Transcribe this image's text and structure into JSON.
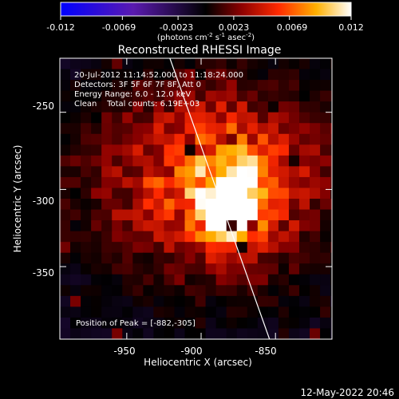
{
  "colorbar": {
    "tick_labels": [
      "-0.012",
      "-0.0069",
      "-0.0023",
      "0.0023",
      "0.0069",
      "0.012"
    ],
    "units_label": "(photons cm",
    "units_sup1": "-2",
    "units_mid": " s",
    "units_sup2": "-1",
    "units_end": " asec",
    "units_sup3": "-2",
    "units_close": ")",
    "range": [
      -0.012,
      0.012
    ],
    "colormap": "red-temperature with blue negatives"
  },
  "plot": {
    "title": "Reconstructed RHESSI Image",
    "info_lines": [
      "20-Jul-2012 11:14:52.000 to 11:18:24.000",
      "Detectors: 3F 5F 6F 7F 8F, Att 0",
      "Energy Range: 6.0 - 12.0 keV",
      "Clean    Total counts: 6.19E+03"
    ],
    "peak_label": "Position of Peak = [-882,-305]",
    "xlabel": "Heliocentric X (arcsec)",
    "ylabel": "Heliocentric Y (arcsec)",
    "x_ticks": [
      "-950",
      "-900",
      "-850"
    ],
    "y_ticks": [
      "-250",
      "-300",
      "-350"
    ],
    "footer_date": "12-May-2022 20:46"
  },
  "chart_data": {
    "type": "heatmap",
    "title": "Reconstructed RHESSI Image",
    "xlabel": "Heliocentric X (arcsec)",
    "ylabel": "Heliocentric Y (arcsec)",
    "xlim": [
      -995,
      -812
    ],
    "ylim": [
      -397,
      -215
    ],
    "x_ticks": [
      -950,
      -900,
      -850
    ],
    "y_ticks": [
      -250,
      -300,
      -350
    ],
    "colorbar_range": [
      -0.012,
      0.012
    ],
    "colorbar_ticks": [
      -0.012,
      -0.0069,
      -0.0023,
      0.0023,
      0.0069,
      0.012
    ],
    "peak": {
      "x": -882,
      "y": -305,
      "value": 0.012
    },
    "limb_line": [
      [
        -921,
        -215
      ],
      [
        -854,
        -397
      ]
    ],
    "grid": false
  }
}
